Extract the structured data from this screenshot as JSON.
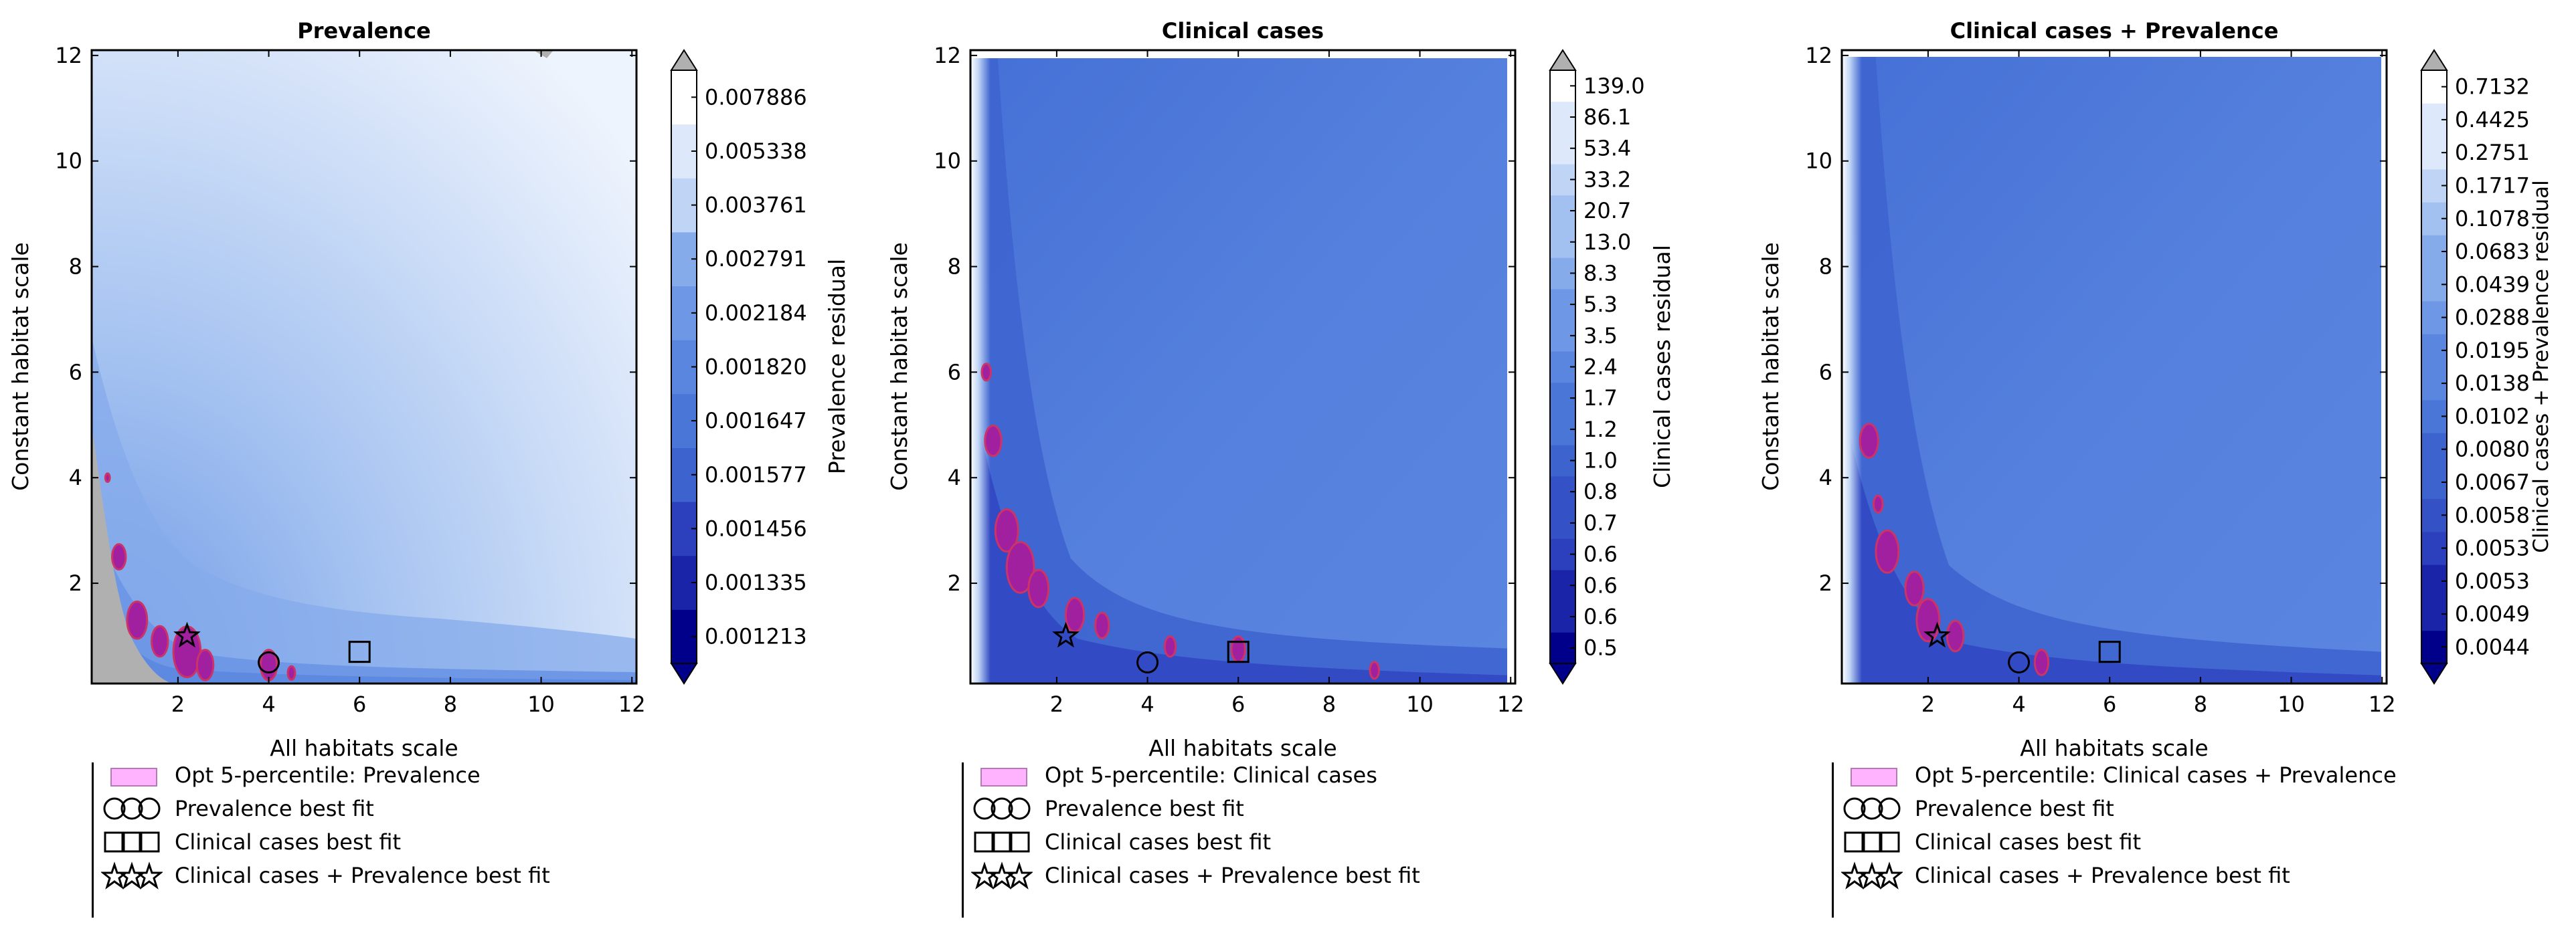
{
  "chart_data": [
    {
      "type": "heatmap",
      "title": "Prevalence",
      "xlabel": "All habitats scale",
      "ylabel": "Constant habitat scale",
      "xlim": [
        0.1,
        12.1
      ],
      "ylim": [
        0.1,
        12.1
      ],
      "xticks": [
        "2",
        "4",
        "6",
        "8",
        "10",
        "12"
      ],
      "yticks": [
        "2",
        "4",
        "6",
        "8",
        "10",
        "12"
      ],
      "colorbar_label": "Prevalence residual",
      "colorbar_levels": [
        "0.001213",
        "0.001335",
        "0.001456",
        "0.001577",
        "0.001647",
        "0.001820",
        "0.002184",
        "0.002791",
        "0.003761",
        "0.005338",
        "0.007886"
      ],
      "colorbar_extend": {
        "top": "grey",
        "bottom": "navy"
      },
      "best_fit": {
        "prevalence": {
          "x": 4.0,
          "y": 0.5
        },
        "clinical_cases": {
          "x": 6.0,
          "y": 0.7
        },
        "combined": {
          "x": 2.2,
          "y": 1.0
        }
      },
      "legend": [
        "Opt 5-percentile: Prevalence",
        "Prevalence best fit",
        "Clinical cases best fit",
        "Clinical cases + Prevalence best fit"
      ]
    },
    {
      "type": "heatmap",
      "title": "Clinical cases",
      "xlabel": "All habitats scale",
      "ylabel": "Constant habitat scale",
      "xlim": [
        0.1,
        12.1
      ],
      "ylim": [
        0.1,
        12.1
      ],
      "xticks": [
        "2",
        "4",
        "6",
        "8",
        "10",
        "12"
      ],
      "yticks": [
        "2",
        "4",
        "6",
        "8",
        "10",
        "12"
      ],
      "colorbar_label": "Clinical cases residual",
      "colorbar_levels": [
        "0.5",
        "0.6",
        "0.6",
        "0.6",
        "0.7",
        "0.8",
        "1.0",
        "1.2",
        "1.7",
        "2.4",
        "3.5",
        "5.3",
        "8.3",
        "13.0",
        "20.7",
        "33.2",
        "53.4",
        "86.1",
        "139.0"
      ],
      "colorbar_extend": {
        "top": "grey",
        "bottom": "navy"
      },
      "best_fit": {
        "prevalence": {
          "x": 4.0,
          "y": 0.5
        },
        "clinical_cases": {
          "x": 6.0,
          "y": 0.7
        },
        "combined": {
          "x": 2.2,
          "y": 1.0
        }
      },
      "legend": [
        "Opt 5-percentile: Clinical cases",
        "Prevalence best fit",
        "Clinical cases best fit",
        "Clinical cases + Prevalence best fit"
      ]
    },
    {
      "type": "heatmap",
      "title": "Clinical cases + Prevalence",
      "xlabel": "All habitats scale",
      "ylabel": "Constant habitat scale",
      "xlim": [
        0.1,
        12.1
      ],
      "ylim": [
        0.1,
        12.1
      ],
      "xticks": [
        "2",
        "4",
        "6",
        "8",
        "10",
        "12"
      ],
      "yticks": [
        "2",
        "4",
        "6",
        "8",
        "10",
        "12"
      ],
      "colorbar_label": "Clinical cases + Prevalence residual",
      "colorbar_levels": [
        "0.0044",
        "0.0049",
        "0.0053",
        "0.0053",
        "0.0058",
        "0.0067",
        "0.0080",
        "0.0102",
        "0.0138",
        "0.0195",
        "0.0288",
        "0.0439",
        "0.0683",
        "0.1078",
        "0.1717",
        "0.2751",
        "0.4425",
        "0.7132"
      ],
      "colorbar_extend": {
        "top": "grey",
        "bottom": "navy"
      },
      "best_fit": {
        "prevalence": {
          "x": 4.0,
          "y": 0.5
        },
        "clinical_cases": {
          "x": 6.0,
          "y": 0.7
        },
        "combined": {
          "x": 2.2,
          "y": 1.0
        }
      },
      "legend": [
        "Opt 5-percentile: Clinical cases + Prevalence",
        "Prevalence best fit",
        "Clinical cases best fit",
        "Clinical cases + Prevalence best fit"
      ]
    }
  ],
  "colors": {
    "palette": [
      "#00008b",
      "#1a24a8",
      "#2c3fbd",
      "#3452c6",
      "#3d63cf",
      "#4a76d8",
      "#5a86e0",
      "#6e98e6",
      "#86abeb",
      "#a2c0f0",
      "#c0d5f5",
      "#dde8fa",
      "#ffffff"
    ],
    "extend_top": "#b0b0b0",
    "opt_fill": "#a020a0",
    "opt_edge": "#cc3366",
    "legend_swatch": "#ffb3ff"
  }
}
